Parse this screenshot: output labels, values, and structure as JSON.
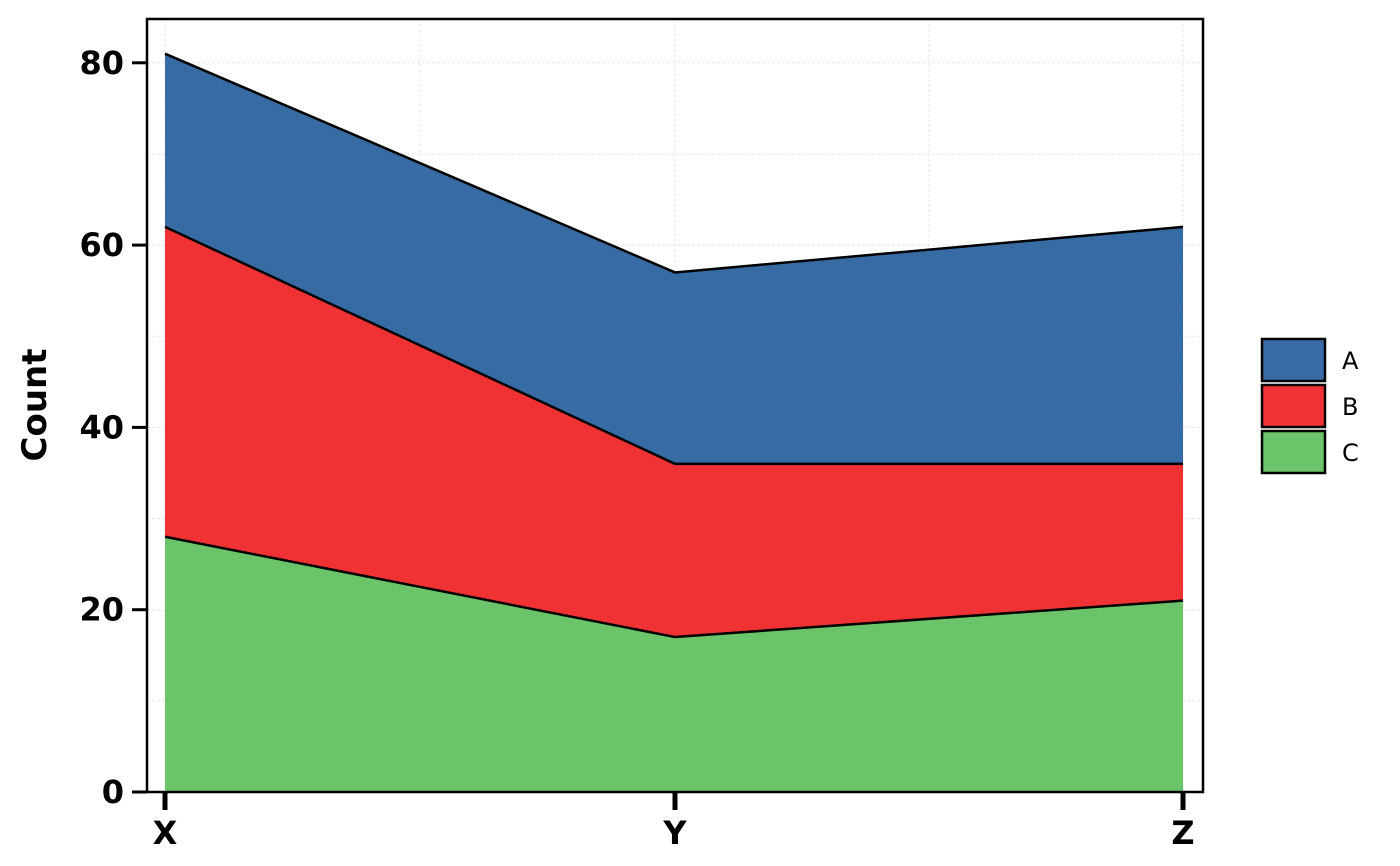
{
  "chart_data": {
    "type": "area",
    "stacked": true,
    "title": "",
    "xlabel": "",
    "ylabel": "Count",
    "categories": [
      "X",
      "Y",
      "Z"
    ],
    "ylim": [
      0,
      85
    ],
    "yticks": [
      0,
      20,
      40,
      60,
      80
    ],
    "grid": true,
    "legend_position": "right",
    "series": [
      {
        "name": "C",
        "values": [
          28,
          17,
          21
        ],
        "color": "#6BC46A"
      },
      {
        "name": "B",
        "values": [
          34,
          19,
          15
        ],
        "color": "#F13235"
      },
      {
        "name": "A",
        "values": [
          19,
          21,
          26
        ],
        "color": "#376BA3"
      }
    ],
    "legend_order": [
      "A",
      "B",
      "C"
    ]
  }
}
